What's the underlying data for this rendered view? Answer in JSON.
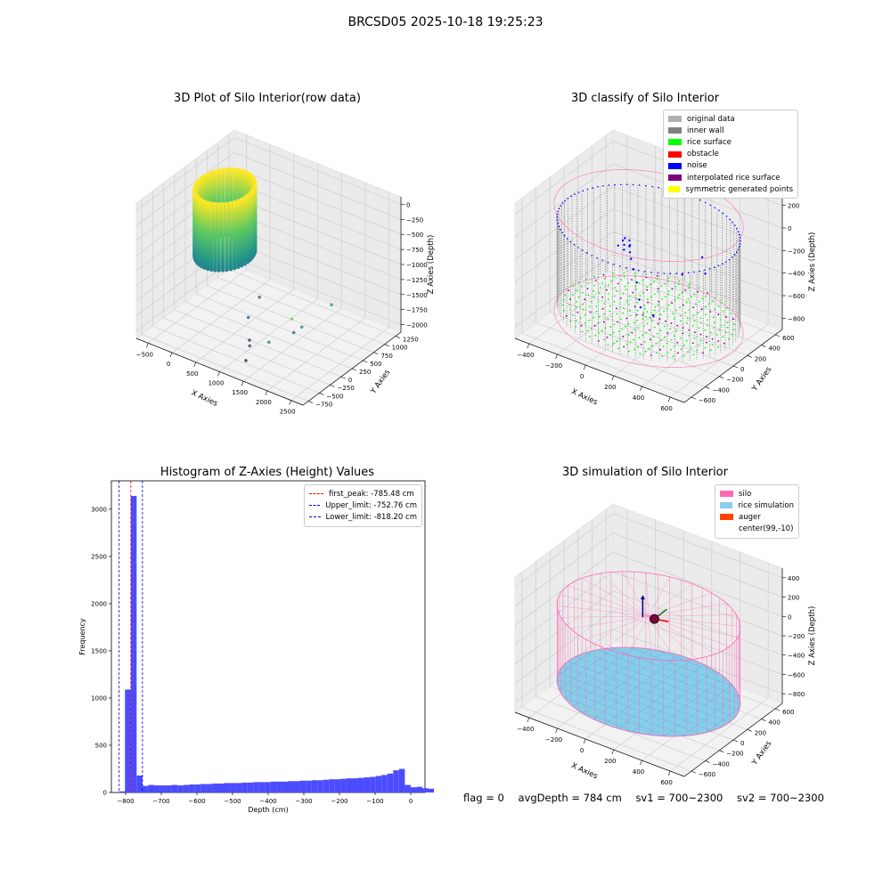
{
  "figure": {
    "suptitle": "BRCSD05 2025-10-18 19:25:23",
    "footer": {
      "flag": "flag = 0",
      "avg_depth": "avgDepth = 784 cm",
      "sv1": "sv1 = 700~2300",
      "sv2": "sv2 = 700~2300"
    }
  },
  "colors": {
    "raw_low": "#440154",
    "raw_mid": "#21918c",
    "raw_high": "#fde725",
    "original_data": "#b0b0b0",
    "inner_wall": "#808080",
    "rice_surface": "#00ff00",
    "obstacle": "#ff0000",
    "noise": "#0000ff",
    "interpolated_rice_surface": "#800080",
    "symmetric_generated_points": "#ffff00",
    "silo": "#ff69b4",
    "rice_simulation": "#87ceeb",
    "auger": "#ff4500",
    "histogram_bars": "#4c4cff",
    "first_peak_line": "#ff0000",
    "limit_line": "#0000cc"
  },
  "chart_data": [
    {
      "type": "scatter",
      "projection": "3d",
      "title": "3D Plot of Silo Interior(row data)",
      "xlabel": "X Axies",
      "ylabel": "Y Axies",
      "zlabel": "Z Axies (Depth)",
      "x_ticks": [
        "−500",
        "0",
        "500",
        "1000",
        "1500",
        "2000",
        "2500"
      ],
      "y_ticks": [
        "−750",
        "−500",
        "−250",
        "0",
        "250",
        "500",
        "750",
        "1000",
        "1250"
      ],
      "z_ticks": [
        "−2000",
        "−1750",
        "−1500",
        "−1250",
        "−1000",
        "−750",
        "−500",
        "−250",
        "0"
      ],
      "xlim": [
        -650,
        2650
      ],
      "ylim": [
        -800,
        1400
      ],
      "zlim": [
        -2150,
        100
      ],
      "series": [
        {
          "points_description_free": true,
          "cylinder": {
            "center": [
              0,
              450
            ],
            "radius": 450,
            "z_top": -100,
            "z_bottom": -1200
          },
          "outliers": [
            {
              "x": 2220,
              "y": 330,
              "z": -1250,
              "c": 0.55
            },
            {
              "x": 1900,
              "y": -200,
              "z": -1300,
              "c": 0.8
            },
            {
              "x": 1800,
              "y": -600,
              "z": -1500,
              "c": 0.45
            },
            {
              "x": 950,
              "y": 150,
              "z": -1450,
              "c": 0.35
            },
            {
              "x": 950,
              "y": -100,
              "z": -1650,
              "c": 0.3
            },
            {
              "x": 1150,
              "y": -300,
              "z": -1850,
              "c": 0.15
            },
            {
              "x": 1200,
              "y": -350,
              "z": -1900,
              "c": 0.2
            },
            {
              "x": 1700,
              "y": 250,
              "z": -1750,
              "c": 0.5
            },
            {
              "x": 1850,
              "y": -100,
              "z": -1600,
              "c": 0.35
            },
            {
              "x": 1300,
              "y": -550,
              "z": -2000,
              "c": 0.1
            }
          ]
        }
      ]
    },
    {
      "type": "scatter",
      "projection": "3d",
      "title": "3D classify of Silo Interior",
      "xlabel": "X Axies",
      "ylabel": "Y Axies",
      "zlabel": "Z Axies (Depth)",
      "x_ticks": [
        "−400",
        "−200",
        "0",
        "200",
        "400",
        "600"
      ],
      "y_ticks": [
        "−600",
        "−400",
        "−200",
        "0",
        "200",
        "400",
        "600"
      ],
      "z_ticks": [
        "−800",
        "−600",
        "−400",
        "−200",
        "0",
        "200"
      ],
      "xlim": [
        -600,
        700
      ],
      "ylim": [
        -700,
        700
      ],
      "zlim": [
        -950,
        250
      ],
      "legend": {
        "position": "upper right",
        "entries": [
          {
            "label": "original data",
            "color": "#b0b0b0"
          },
          {
            "label": "inner wall",
            "color": "#808080"
          },
          {
            "label": "rice surface",
            "color": "#00ff00"
          },
          {
            "label": "obstacle",
            "color": "#ff0000"
          },
          {
            "label": "noise",
            "color": "#0000ff"
          },
          {
            "label": "interpolated rice surface",
            "color": "#800080"
          },
          {
            "label": "symmetric generated points",
            "color": "#ffff00"
          }
        ]
      },
      "silo": {
        "center": [
          50,
          0
        ],
        "radius": 620,
        "z_top": -20,
        "z_bottom": -800
      },
      "rice_surface_z": -780
    },
    {
      "type": "bar",
      "title": "Histogram of Z-Axies (Height) Values",
      "xlabel": "Depth (cm)",
      "ylabel": "Frequency",
      "xlim": [
        -840,
        40
      ],
      "ylim": [
        0,
        3300
      ],
      "x_ticks": [
        -800,
        -700,
        -600,
        -500,
        -400,
        -300,
        -200,
        -100,
        0
      ],
      "y_ticks": [
        0,
        500,
        1000,
        1500,
        2000,
        2500,
        3000
      ],
      "bin_width": 16.36,
      "bin_start": -818.2,
      "values": [
        12,
        1090,
        3140,
        180,
        70,
        80,
        75,
        75,
        75,
        80,
        75,
        80,
        85,
        85,
        90,
        90,
        95,
        95,
        100,
        100,
        100,
        105,
        105,
        110,
        110,
        110,
        115,
        115,
        115,
        120,
        120,
        125,
        125,
        130,
        130,
        135,
        140,
        140,
        145,
        150,
        150,
        155,
        160,
        165,
        175,
        185,
        200,
        235,
        250,
        80,
        55,
        60,
        45,
        40
      ],
      "vlines": [
        {
          "label": "first_peak: -785.48 cm",
          "x": -785.48,
          "color": "#ff0000"
        },
        {
          "label": "Upper_limit: -752.76 cm",
          "x": -752.76,
          "color": "#0000cc"
        },
        {
          "label": "Lower_limit: -818.20 cm",
          "x": -818.2,
          "color": "#0000cc"
        }
      ],
      "legend": {
        "position": "upper right"
      }
    },
    {
      "type": "scatter",
      "projection": "3d",
      "title": "3D simulation of Silo Interior",
      "xlabel": "X Axies",
      "ylabel": "Y Axies",
      "zlabel": "Z Axies (Depth)",
      "x_ticks": [
        "−400",
        "−200",
        "0",
        "200",
        "400",
        "600"
      ],
      "y_ticks": [
        "−600",
        "−400",
        "−200",
        "0",
        "200",
        "400",
        "600"
      ],
      "z_ticks": [
        "−800",
        "−600",
        "−400",
        "−200",
        "0",
        "200",
        "400"
      ],
      "xlim": [
        -600,
        700
      ],
      "ylim": [
        -700,
        700
      ],
      "zlim": [
        -950,
        450
      ],
      "legend": {
        "position": "upper right",
        "entries": [
          {
            "label": "silo",
            "color": "#ff69b4"
          },
          {
            "label": "rice simulation",
            "color": "#87ceeb"
          },
          {
            "label": "auger",
            "color": "#ff4500"
          },
          {
            "label": "center(99,-10)",
            "color": ""
          }
        ]
      },
      "silo": {
        "center": [
          50,
          0
        ],
        "radius": 620,
        "z_top": 0,
        "z_bottom": -784
      },
      "center": [
        99,
        -10
      ]
    }
  ]
}
